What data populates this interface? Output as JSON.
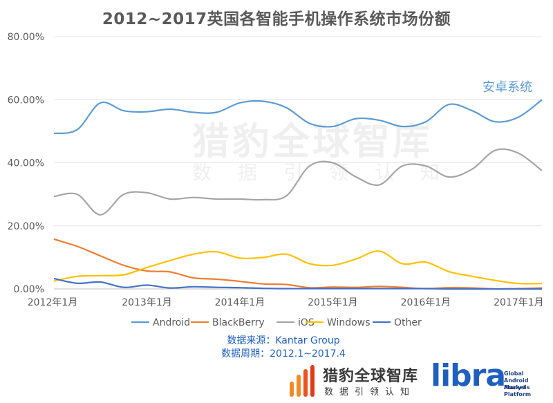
{
  "chart_data": {
    "type": "line",
    "title": "2012~2017英国各智能手机操作系统市场份额",
    "x": [
      "2012-01",
      "2012-04",
      "2012-07",
      "2012-10",
      "2013-01",
      "2013-04",
      "2013-07",
      "2013-10",
      "2014-01",
      "2014-04",
      "2014-07",
      "2014-10",
      "2015-01",
      "2015-04",
      "2015-07",
      "2015-10",
      "2016-01",
      "2016-04",
      "2016-07",
      "2016-10",
      "2017-01",
      "2017-04"
    ],
    "x_tick_labels": [
      "2012年1月",
      "2013年1月",
      "2014年1月",
      "2015年1月",
      "2016年1月",
      "2017年1月"
    ],
    "y_tick_labels": [
      "0.00%",
      "20.00%",
      "40.00%",
      "60.00%",
      "80.00%"
    ],
    "ylim": [
      0,
      80
    ],
    "series": [
      {
        "name": "Android",
        "color": "#5b9bd5",
        "values": [
          49.3,
          50.5,
          59,
          56.5,
          56.2,
          57,
          56,
          56,
          59,
          59.5,
          57.5,
          52.5,
          51.5,
          54,
          53.5,
          51.5,
          53,
          58.5,
          56.5,
          53,
          54.5,
          60
        ]
      },
      {
        "name": "BlackBerry",
        "color": "#ed7d31",
        "values": [
          15.8,
          13.5,
          10.5,
          7.5,
          5.7,
          5.4,
          3.5,
          3.1,
          2.4,
          1.6,
          1.4,
          0.4,
          0.6,
          0.5,
          0.8,
          0.5,
          0.1,
          0.4,
          0.3,
          0,
          0.1,
          0.3
        ]
      },
      {
        "name": "iOS",
        "color": "#a5a5a5",
        "values": [
          29.3,
          30,
          23.5,
          30,
          30.5,
          28.5,
          29,
          28.5,
          28.5,
          28.3,
          29.5,
          39,
          40,
          35.5,
          33,
          39,
          39,
          35.5,
          38,
          44,
          43,
          37.5
        ]
      },
      {
        "name": "Windows",
        "color": "#ffc000",
        "values": [
          2.5,
          4,
          4.2,
          4.5,
          6.8,
          9,
          11,
          11.8,
          9.8,
          10,
          11,
          8,
          7.5,
          9.5,
          12,
          8,
          8.5,
          5.5,
          4,
          2.7,
          1.7,
          1.7
        ]
      },
      {
        "name": "Other",
        "color": "#4472c4",
        "values": [
          3.3,
          1.8,
          2.2,
          0.5,
          1.2,
          0.3,
          0.7,
          0.5,
          0.4,
          0.2,
          0.1,
          0.1,
          0.1,
          0.1,
          0.1,
          0.1,
          0.1,
          0,
          0,
          0,
          0,
          0
        ]
      }
    ],
    "grid": true,
    "legend_position": "bottom",
    "annotation": "安卓系统"
  },
  "source": {
    "line1": "数据来源：Kantar Group",
    "line2": "数据周期：2012.1~2017.4"
  },
  "logo": {
    "brand_cn": "猎豹全球智库",
    "brand_sub": "数据引领认知",
    "libra": "libra",
    "libra_tag": [
      "Global",
      "Android Market",
      "Analysis Platform"
    ]
  }
}
